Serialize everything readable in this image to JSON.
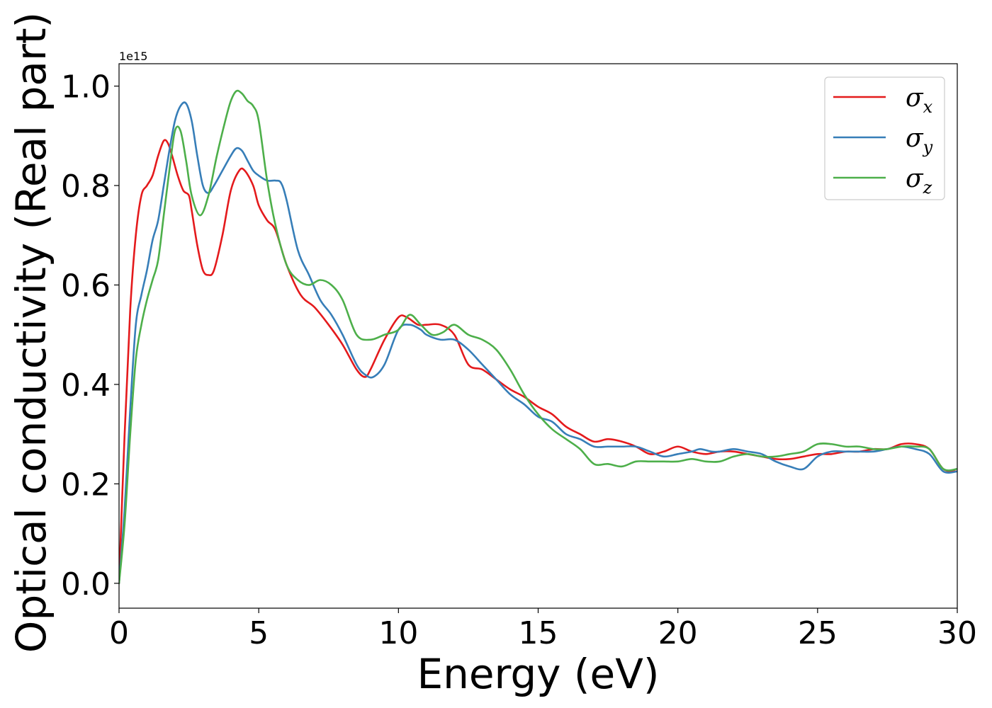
{
  "chart_data": {
    "type": "line",
    "title": "",
    "xlabel": "Energy (eV)",
    "ylabel": "Optical conductivity (Real part)",
    "y_offset_label": "1e15",
    "y_multiplier": 1000000000000000.0,
    "xlim": [
      0,
      30
    ],
    "ylim": [
      -0.05,
      1.045
    ],
    "x_ticks": [
      0,
      5,
      10,
      15,
      20,
      25,
      30
    ],
    "x_tick_labels": [
      "0",
      "5",
      "10",
      "15",
      "20",
      "25",
      "30"
    ],
    "y_ticks": [
      0.0,
      0.2,
      0.4,
      0.6,
      0.8,
      1.0
    ],
    "y_tick_labels": [
      "0.0",
      "0.2",
      "0.4",
      "0.6",
      "0.8",
      "1.0"
    ],
    "grid": false,
    "legend_position": "top-right",
    "series": [
      {
        "name": "σx",
        "symbol": "σ",
        "subscript": "x",
        "color": "#e41a1c",
        "x": [
          0,
          0.2,
          0.4,
          0.6,
          0.8,
          1.0,
          1.2,
          1.4,
          1.6,
          1.75,
          1.9,
          2.1,
          2.3,
          2.5,
          2.6,
          2.8,
          3.0,
          3.2,
          3.4,
          3.7,
          4.0,
          4.3,
          4.5,
          4.8,
          5.0,
          5.3,
          5.6,
          6.0,
          6.5,
          7.0,
          7.5,
          8.0,
          8.5,
          8.8,
          9.0,
          9.5,
          10.0,
          10.3,
          10.7,
          11.0,
          11.5,
          12.0,
          12.5,
          13.0,
          13.5,
          14.0,
          14.5,
          15.0,
          15.5,
          16.0,
          16.5,
          17.0,
          17.5,
          18.0,
          18.5,
          19.0,
          19.5,
          20.0,
          20.5,
          21.0,
          21.5,
          22.0,
          22.5,
          23.0,
          23.5,
          24.0,
          24.5,
          25.0,
          25.5,
          26.0,
          26.5,
          27.0,
          27.5,
          28.0,
          28.5,
          29.0,
          29.5,
          30.0
        ],
        "y": [
          0.0,
          0.3,
          0.55,
          0.7,
          0.78,
          0.8,
          0.82,
          0.86,
          0.89,
          0.885,
          0.86,
          0.82,
          0.79,
          0.78,
          0.75,
          0.68,
          0.63,
          0.62,
          0.63,
          0.7,
          0.79,
          0.83,
          0.83,
          0.8,
          0.76,
          0.73,
          0.71,
          0.64,
          0.58,
          0.555,
          0.52,
          0.48,
          0.43,
          0.415,
          0.43,
          0.49,
          0.535,
          0.535,
          0.52,
          0.52,
          0.52,
          0.5,
          0.44,
          0.43,
          0.41,
          0.39,
          0.375,
          0.355,
          0.34,
          0.315,
          0.3,
          0.285,
          0.29,
          0.285,
          0.275,
          0.26,
          0.265,
          0.275,
          0.265,
          0.26,
          0.265,
          0.265,
          0.26,
          0.255,
          0.25,
          0.25,
          0.255,
          0.26,
          0.26,
          0.265,
          0.265,
          0.27,
          0.27,
          0.28,
          0.28,
          0.27,
          0.23,
          0.225
        ]
      },
      {
        "name": "σy",
        "symbol": "σ",
        "subscript": "y",
        "color": "#377eb8",
        "x": [
          0,
          0.2,
          0.4,
          0.6,
          0.8,
          1.0,
          1.2,
          1.4,
          1.6,
          1.8,
          2.0,
          2.2,
          2.4,
          2.6,
          2.8,
          3.0,
          3.2,
          3.4,
          3.7,
          4.0,
          4.2,
          4.4,
          4.6,
          4.8,
          5.0,
          5.3,
          5.6,
          5.8,
          6.0,
          6.4,
          6.8,
          7.2,
          7.6,
          8.0,
          8.5,
          8.8,
          9.1,
          9.5,
          10.0,
          10.4,
          10.8,
          11.0,
          11.5,
          12.0,
          12.5,
          13.0,
          13.5,
          14.0,
          14.5,
          15.0,
          15.5,
          16.0,
          16.5,
          17.0,
          17.5,
          18.0,
          18.5,
          19.0,
          19.5,
          20.0,
          20.5,
          20.8,
          21.2,
          21.5,
          22.0,
          22.5,
          23.0,
          23.5,
          24.0,
          24.5,
          25.0,
          25.5,
          26.0,
          26.5,
          27.0,
          27.5,
          28.0,
          28.5,
          29.0,
          29.5,
          30.0
        ],
        "y": [
          0.0,
          0.15,
          0.35,
          0.52,
          0.58,
          0.63,
          0.69,
          0.73,
          0.8,
          0.87,
          0.93,
          0.96,
          0.965,
          0.93,
          0.86,
          0.8,
          0.785,
          0.8,
          0.83,
          0.86,
          0.875,
          0.87,
          0.85,
          0.83,
          0.82,
          0.81,
          0.81,
          0.805,
          0.77,
          0.67,
          0.62,
          0.57,
          0.54,
          0.5,
          0.44,
          0.42,
          0.415,
          0.44,
          0.51,
          0.52,
          0.51,
          0.5,
          0.49,
          0.49,
          0.47,
          0.44,
          0.41,
          0.38,
          0.36,
          0.335,
          0.325,
          0.3,
          0.29,
          0.275,
          0.275,
          0.275,
          0.275,
          0.265,
          0.255,
          0.26,
          0.265,
          0.27,
          0.265,
          0.265,
          0.27,
          0.265,
          0.26,
          0.245,
          0.235,
          0.23,
          0.255,
          0.265,
          0.265,
          0.265,
          0.265,
          0.27,
          0.275,
          0.27,
          0.26,
          0.225,
          0.225
        ]
      },
      {
        "name": "σz",
        "symbol": "σ",
        "subscript": "z",
        "color": "#4daf4a",
        "x": [
          0,
          0.2,
          0.4,
          0.6,
          0.8,
          1.0,
          1.2,
          1.4,
          1.6,
          1.8,
          2.0,
          2.2,
          2.4,
          2.6,
          2.9,
          3.2,
          3.5,
          3.8,
          4.0,
          4.2,
          4.4,
          4.6,
          4.8,
          5.0,
          5.3,
          5.6,
          6.0,
          6.4,
          6.8,
          7.2,
          7.6,
          8.0,
          8.5,
          9.0,
          9.5,
          10.0,
          10.4,
          10.8,
          11.2,
          11.6,
          12.0,
          12.5,
          13.0,
          13.5,
          14.0,
          14.5,
          15.0,
          15.5,
          16.0,
          16.5,
          17.0,
          17.5,
          18.0,
          18.5,
          19.0,
          19.5,
          20.0,
          20.5,
          21.0,
          21.5,
          22.0,
          22.5,
          23.0,
          23.5,
          24.0,
          24.5,
          25.0,
          25.5,
          26.0,
          26.5,
          27.0,
          27.5,
          28.0,
          28.5,
          29.0,
          29.5,
          30.0
        ],
        "y": [
          0.0,
          0.12,
          0.3,
          0.45,
          0.52,
          0.57,
          0.61,
          0.65,
          0.74,
          0.83,
          0.91,
          0.91,
          0.85,
          0.78,
          0.74,
          0.78,
          0.86,
          0.93,
          0.97,
          0.99,
          0.985,
          0.97,
          0.96,
          0.93,
          0.81,
          0.72,
          0.64,
          0.61,
          0.6,
          0.61,
          0.6,
          0.57,
          0.5,
          0.49,
          0.5,
          0.51,
          0.54,
          0.52,
          0.5,
          0.505,
          0.52,
          0.5,
          0.49,
          0.47,
          0.43,
          0.38,
          0.34,
          0.31,
          0.29,
          0.27,
          0.24,
          0.24,
          0.235,
          0.245,
          0.245,
          0.245,
          0.245,
          0.25,
          0.245,
          0.245,
          0.255,
          0.26,
          0.255,
          0.255,
          0.26,
          0.265,
          0.28,
          0.28,
          0.275,
          0.275,
          0.27,
          0.27,
          0.275,
          0.275,
          0.27,
          0.23,
          0.23
        ]
      }
    ]
  }
}
